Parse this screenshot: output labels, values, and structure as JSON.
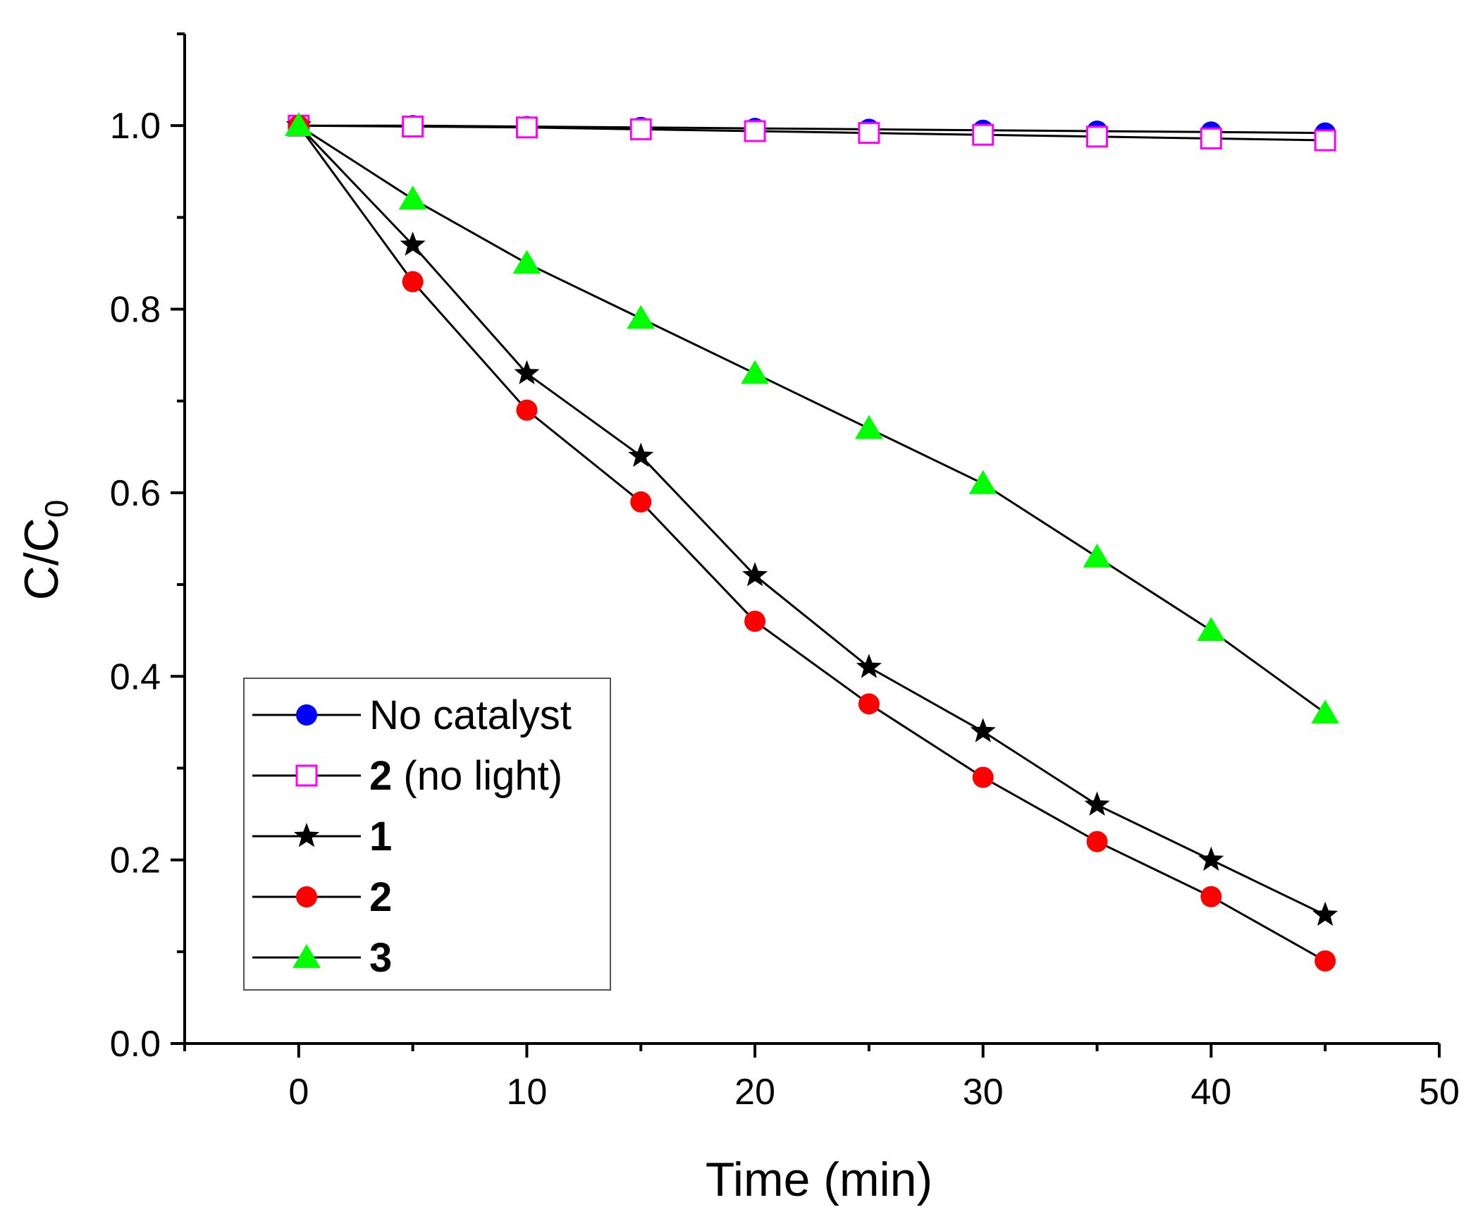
{
  "chart_data": {
    "type": "line",
    "title": "",
    "xlabel": "Time (min)",
    "ylabel_main": "C/C",
    "ylabel_sub": "0",
    "xlim": [
      -5,
      50
    ],
    "ylim": [
      0,
      1.1
    ],
    "x_ticks": [
      0,
      10,
      20,
      30,
      40,
      50
    ],
    "x_tick_labels": [
      "0",
      "10",
      "20",
      "30",
      "40",
      "50"
    ],
    "y_ticks": [
      0.0,
      0.2,
      0.4,
      0.6,
      0.8,
      1.0
    ],
    "y_tick_labels": [
      "0.0",
      "0.2",
      "0.4",
      "0.6",
      "0.8",
      "1.0"
    ],
    "x": [
      0,
      5,
      10,
      15,
      20,
      25,
      30,
      35,
      40,
      45
    ],
    "legend_position": "lower-left",
    "series": [
      {
        "name": "No catalyst",
        "legend_bold": "",
        "legend_rest": "No catalyst",
        "marker": "circle",
        "color": "#0000ff",
        "values": [
          1.0,
          1.0,
          0.999,
          0.998,
          0.997,
          0.996,
          0.995,
          0.994,
          0.993,
          0.992
        ]
      },
      {
        "name": "2 (no light)",
        "legend_bold": "2",
        "legend_rest": " (no light)",
        "marker": "open-square",
        "color": "#ff00ff",
        "values": [
          1.0,
          0.999,
          0.998,
          0.996,
          0.994,
          0.992,
          0.99,
          0.988,
          0.986,
          0.984
        ]
      },
      {
        "name": "1",
        "legend_bold": "1",
        "legend_rest": "",
        "marker": "star",
        "color": "#000000",
        "values": [
          1.0,
          0.87,
          0.73,
          0.64,
          0.51,
          0.41,
          0.34,
          0.26,
          0.2,
          0.14
        ]
      },
      {
        "name": "2",
        "legend_bold": "2",
        "legend_rest": "",
        "marker": "circle",
        "color": "#ff0000",
        "values": [
          1.0,
          0.83,
          0.69,
          0.59,
          0.46,
          0.37,
          0.29,
          0.22,
          0.16,
          0.09
        ]
      },
      {
        "name": "3",
        "legend_bold": "3",
        "legend_rest": "",
        "marker": "triangle",
        "color": "#00ff00",
        "values": [
          1.0,
          0.92,
          0.85,
          0.79,
          0.73,
          0.67,
          0.61,
          0.53,
          0.45,
          0.36
        ]
      }
    ]
  }
}
